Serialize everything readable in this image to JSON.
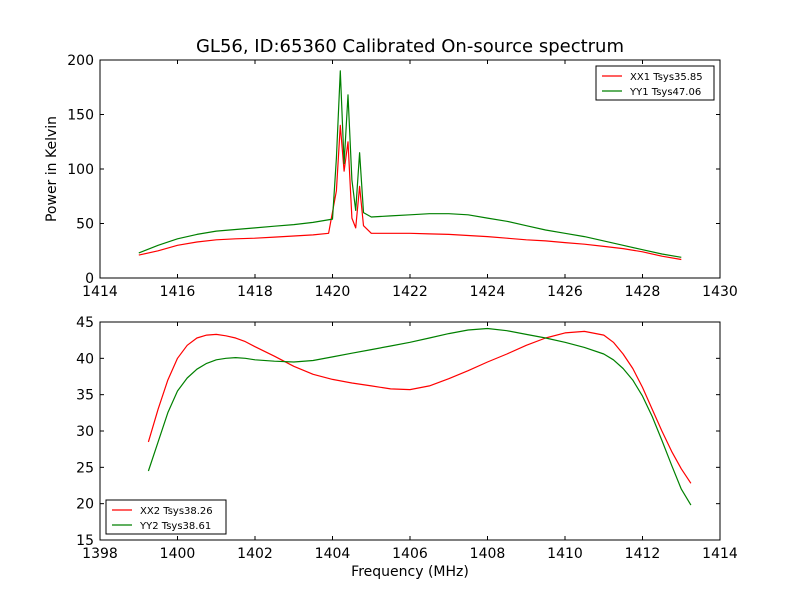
{
  "figure": {
    "title": "GL56, ID:65360 Calibrated On-source spectrum"
  },
  "chart_data": [
    {
      "type": "line",
      "title": "GL56, ID:65360 Calibrated On-source spectrum",
      "xlabel": "",
      "ylabel": "Power in Kelvin",
      "xlim": [
        1414,
        1430
      ],
      "ylim": [
        0,
        200
      ],
      "xticks": [
        1414,
        1416,
        1418,
        1420,
        1422,
        1424,
        1426,
        1428,
        1430
      ],
      "yticks": [
        0,
        50,
        100,
        150,
        200
      ],
      "grid": false,
      "legend_position": "top-right",
      "series": [
        {
          "name": "XX1 Tsys35.85",
          "color": "#ff0000",
          "x": [
            1415.0,
            1415.5,
            1416.0,
            1416.5,
            1417.0,
            1417.5,
            1418.0,
            1418.5,
            1419.0,
            1419.5,
            1419.9,
            1420.1,
            1420.2,
            1420.3,
            1420.4,
            1420.5,
            1420.6,
            1420.7,
            1420.8,
            1421.0,
            1421.5,
            1422.0,
            1422.5,
            1423.0,
            1423.5,
            1424.0,
            1424.5,
            1425.0,
            1425.5,
            1426.0,
            1426.5,
            1427.0,
            1427.5,
            1428.0,
            1428.5,
            1429.0
          ],
          "y": [
            21,
            25,
            30,
            33,
            35,
            36,
            36.5,
            37.5,
            38.5,
            39.5,
            41,
            80,
            140,
            98,
            125,
            55,
            46,
            84,
            48,
            41,
            41,
            41,
            40.5,
            40,
            39,
            38,
            36.5,
            35,
            34,
            32.5,
            31,
            29,
            27,
            24,
            20,
            17
          ]
        },
        {
          "name": "YY1 Tsys47.06",
          "color": "#008000",
          "x": [
            1415.0,
            1415.5,
            1416.0,
            1416.5,
            1417.0,
            1417.5,
            1418.0,
            1418.5,
            1419.0,
            1419.5,
            1420.0,
            1420.1,
            1420.2,
            1420.3,
            1420.4,
            1420.5,
            1420.6,
            1420.7,
            1420.8,
            1421.0,
            1421.5,
            1422.0,
            1422.5,
            1423.0,
            1423.5,
            1424.0,
            1424.5,
            1425.0,
            1425.5,
            1426.0,
            1426.5,
            1427.0,
            1427.5,
            1428.0,
            1428.5,
            1429.0
          ],
          "y": [
            23,
            30,
            36,
            40,
            43,
            44.5,
            46,
            47.5,
            49,
            51,
            54,
            110,
            190,
            105,
            168,
            90,
            62,
            115,
            60,
            56,
            57,
            58,
            59,
            59,
            58,
            55,
            52,
            48,
            44,
            41,
            38,
            34,
            30,
            26,
            22,
            19
          ]
        }
      ]
    },
    {
      "type": "line",
      "title": "",
      "xlabel": "Frequency (MHz)",
      "ylabel": "",
      "xlim": [
        1398,
        1414
      ],
      "ylim": [
        15,
        45
      ],
      "xticks": [
        1398,
        1400,
        1402,
        1404,
        1406,
        1408,
        1410,
        1412,
        1414
      ],
      "yticks": [
        15,
        20,
        25,
        30,
        35,
        40,
        45
      ],
      "grid": false,
      "legend_position": "bottom-left",
      "series": [
        {
          "name": "XX2 Tsys38.26",
          "color": "#ff0000",
          "x": [
            1399.25,
            1399.5,
            1399.75,
            1400.0,
            1400.25,
            1400.5,
            1400.75,
            1401.0,
            1401.25,
            1401.5,
            1401.75,
            1402.0,
            1402.5,
            1403.0,
            1403.5,
            1404.0,
            1404.5,
            1405.0,
            1405.5,
            1406.0,
            1406.5,
            1407.0,
            1407.5,
            1408.0,
            1408.5,
            1409.0,
            1409.5,
            1410.0,
            1410.5,
            1411.0,
            1411.25,
            1411.5,
            1411.75,
            1412.0,
            1412.25,
            1412.5,
            1412.75,
            1413.0,
            1413.25
          ],
          "y": [
            28.5,
            33,
            37,
            40,
            41.8,
            42.8,
            43.2,
            43.3,
            43.1,
            42.8,
            42.3,
            41.6,
            40.3,
            38.9,
            37.8,
            37.1,
            36.6,
            36.2,
            35.8,
            35.7,
            36.2,
            37.2,
            38.3,
            39.5,
            40.6,
            41.8,
            42.8,
            43.5,
            43.7,
            43.2,
            42.2,
            40.6,
            38.6,
            36.0,
            33.0,
            30.0,
            27.2,
            24.8,
            22.8
          ]
        },
        {
          "name": "YY2 Tsys38.61",
          "color": "#008000",
          "x": [
            1399.25,
            1399.5,
            1399.75,
            1400.0,
            1400.25,
            1400.5,
            1400.75,
            1401.0,
            1401.25,
            1401.5,
            1401.75,
            1402.0,
            1402.5,
            1403.0,
            1403.5,
            1404.0,
            1404.5,
            1405.0,
            1405.5,
            1406.0,
            1406.5,
            1407.0,
            1407.5,
            1408.0,
            1408.5,
            1409.0,
            1409.5,
            1410.0,
            1410.5,
            1411.0,
            1411.25,
            1411.5,
            1411.75,
            1412.0,
            1412.25,
            1412.5,
            1412.75,
            1413.0,
            1413.25
          ],
          "y": [
            24.5,
            28.5,
            32.5,
            35.5,
            37.3,
            38.5,
            39.3,
            39.8,
            40.0,
            40.1,
            40.0,
            39.8,
            39.6,
            39.5,
            39.7,
            40.2,
            40.7,
            41.2,
            41.7,
            42.2,
            42.8,
            43.4,
            43.9,
            44.1,
            43.8,
            43.3,
            42.8,
            42.2,
            41.5,
            40.6,
            39.8,
            38.6,
            37.0,
            34.8,
            32.0,
            28.7,
            25.3,
            22.0,
            19.8
          ]
        }
      ]
    }
  ]
}
